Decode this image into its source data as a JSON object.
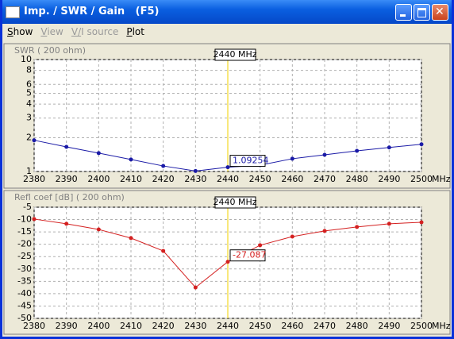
{
  "window": {
    "title": "Imp. / SWR / Gain   (F5)"
  },
  "menu": [
    "Show",
    "View",
    "V/I source",
    "Plot"
  ],
  "chart_data": [
    {
      "type": "line",
      "ylabel": "SWR ( 200 ohm)",
      "log_y": true,
      "grid": true,
      "x": [
        2380,
        2390,
        2400,
        2410,
        2420,
        2430,
        2440,
        2450,
        2460,
        2470,
        2480,
        2490,
        2500
      ],
      "xlim": [
        2380,
        2500
      ],
      "xticks": [
        2380,
        2390,
        2400,
        2410,
        2420,
        2430,
        2440,
        2450,
        2460,
        2470,
        2480,
        2490,
        2500
      ],
      "xlabel": "MHz",
      "ylim": [
        1,
        10
      ],
      "yticks": [
        1,
        2,
        3,
        4,
        5,
        6,
        8,
        10
      ],
      "series": [
        {
          "name": "SWR",
          "color": "#1a1aa6",
          "values": [
            1.9,
            1.66,
            1.46,
            1.28,
            1.12,
            1.01,
            1.09254,
            1.14,
            1.3,
            1.41,
            1.53,
            1.64,
            1.75
          ]
        }
      ],
      "cursor": 2440,
      "cursor_label": "2440 MHz",
      "cursor_color": "#f5e050"
    },
    {
      "type": "line",
      "ylabel": "Refl coef [dB] ( 200 ohm)",
      "log_y": false,
      "grid": true,
      "x": [
        2380,
        2390,
        2400,
        2410,
        2420,
        2430,
        2440,
        2450,
        2460,
        2470,
        2480,
        2490,
        2500
      ],
      "xlim": [
        2380,
        2500
      ],
      "xticks": [
        2380,
        2390,
        2400,
        2410,
        2420,
        2430,
        2440,
        2450,
        2460,
        2470,
        2480,
        2490,
        2500
      ],
      "xlabel": "MHz",
      "ylim": [
        -50,
        -5
      ],
      "yticks": [
        -5,
        -10,
        -15,
        -20,
        -25,
        -30,
        -35,
        -40,
        -45,
        -50
      ],
      "series": [
        {
          "name": "Refl coef",
          "color": "#d42020",
          "values": [
            -9.8,
            -11.7,
            -14.0,
            -17.5,
            -22.7,
            -37.5,
            -27.087,
            -20.4,
            -16.9,
            -14.6,
            -13.0,
            -11.7,
            -11.1
          ]
        }
      ],
      "cursor": 2440,
      "cursor_label": "2440 MHz",
      "cursor_color": "#f5e050"
    }
  ]
}
